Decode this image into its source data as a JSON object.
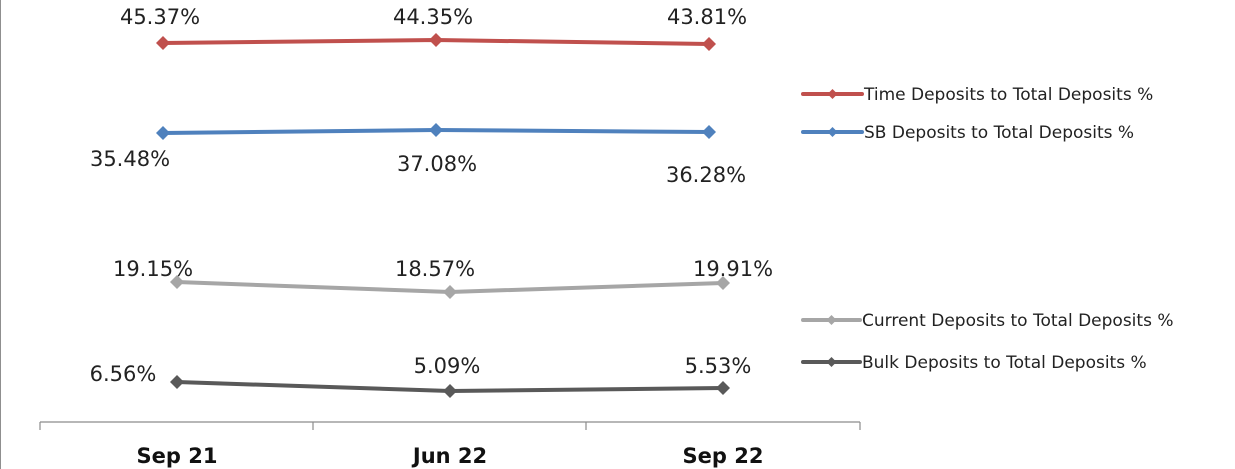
{
  "chart_data": [
    {
      "type": "line",
      "categories": [
        "Sep 21",
        "Jun 22",
        "Sep 22"
      ],
      "ylim": [
        43.0,
        46.0
      ],
      "grid": false,
      "legend_position": "right",
      "series": [
        {
          "name": "Time Deposits to Total Deposits %",
          "values": [
            45.37,
            44.35,
            43.81
          ],
          "labels": [
            "45.37%",
            "44.35%",
            "43.81%"
          ],
          "color": "#c0504d"
        },
        {
          "name": "SB Deposits to Total Deposits %",
          "values": [
            35.48,
            37.08,
            36.28
          ],
          "labels": [
            "35.48%",
            "37.08%",
            "36.28%"
          ],
          "color": "#4f81bd"
        }
      ]
    },
    {
      "type": "line",
      "categories": [
        "Sep 21",
        "Jun 22",
        "Sep 22"
      ],
      "grid": false,
      "legend_position": "right",
      "series": [
        {
          "name": "Current Deposits to Total Deposits %",
          "values": [
            19.15,
            18.57,
            19.91
          ],
          "labels": [
            "19.15%",
            "18.57%",
            "19.91%"
          ],
          "color": "#a6a6a6"
        },
        {
          "name": "Bulk Deposits to Total Deposits %",
          "values": [
            6.56,
            5.09,
            5.53
          ],
          "labels": [
            "6.56%",
            "5.09%",
            "5.53%"
          ],
          "color": "#595959"
        }
      ]
    }
  ]
}
